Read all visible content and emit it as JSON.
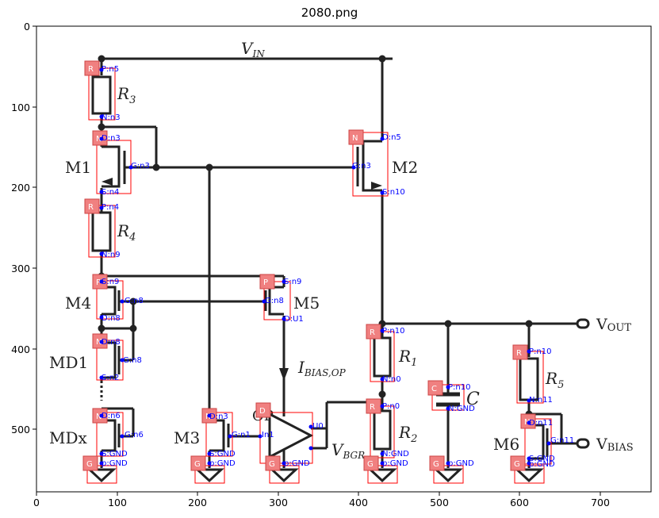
{
  "title": "2080.png",
  "axes": {
    "x_ticks": [
      "0",
      "100",
      "200",
      "300",
      "400",
      "500",
      "600",
      "700"
    ],
    "y_ticks": [
      "0",
      "100",
      "200",
      "300",
      "400",
      "500"
    ]
  },
  "labels": {
    "vin": "V",
    "vin_sub": "IN",
    "vout": "V",
    "vout_sub": "OUT",
    "vbias": "V",
    "vbias_sub": "BIAS",
    "vbgr": "V",
    "vbgr_sub": "BGR",
    "ibias": "I",
    "ibias_sub": "BIAS,OP",
    "op": "OP",
    "r3": "R",
    "r3_sub": "3",
    "r4": "R",
    "r4_sub": "4",
    "r1": "R",
    "r1_sub": "1",
    "r2": "R",
    "r2_sub": "2",
    "r5": "R",
    "r5_sub": "5",
    "c": "C",
    "m1": "M1",
    "m2": "M2",
    "m3": "M3",
    "m4": "M4",
    "m5": "M5",
    "m6": "M6",
    "md1": "MD1",
    "mdx": "MDx"
  },
  "badges": {
    "r3": "R",
    "m1": "N",
    "r4": "R",
    "m4": "P",
    "md1": "N",
    "mdx": "N",
    "g1": "G",
    "m3": "N",
    "g2": "G",
    "m5": "P",
    "op": "D",
    "g3": "G",
    "m2": "N",
    "r1": "R",
    "r2": "R",
    "g4": "G",
    "cap": "C",
    "g5": "G",
    "r5": "R",
    "m6": "N",
    "g6": "G"
  },
  "pins": {
    "r3_p": "P:n5",
    "r3_n": "N:n3",
    "m1_d": "D:n3",
    "m1_g": "G:n3",
    "m1_s": "S:n4",
    "r4_p": "P:n4",
    "r4_n": "N:n9",
    "m4_s": "S:n9",
    "m4_g": "G:n8",
    "m4_d": "D:n8",
    "md1_d": "D:n8",
    "md1_g": "G:n8",
    "md1_s": "S:n2",
    "mdx_d": "D:n6",
    "mdx_g": "G:n6",
    "mdx_s": "S:GND",
    "g1_p": "p:GND",
    "m3_d": "D:n3",
    "m3_g": "G:n1",
    "m3_s": "S:GND",
    "g2_p": "p:GND",
    "m5_s": "S:n9",
    "m5_g": "G:n8",
    "m5_d": "D:U1",
    "op_in": "In1",
    "op_out": "U0",
    "g3_p": "p:GND",
    "m2_d": "D:n5",
    "m2_g": "G:n3",
    "m2_s": "S:n10",
    "r1_p": "P:n10",
    "r1_n": "N:n0",
    "r2_p": "P:n0",
    "r2_n": "N:GND",
    "g4_p": "p:GND",
    "c_p": "P:n10",
    "c_n": "N:GND",
    "g5_p": "p:GND",
    "r5_p": "P:n10",
    "r5_n": "N:n11",
    "m6_d": "D:n11",
    "m6_g": "G:n11",
    "m6_s": "S:GND",
    "g6_p": "p:GND"
  },
  "colors": {
    "wire": "#222222",
    "box": "#ff0000",
    "badge": "#f08080",
    "pin": "#0000ff"
  }
}
